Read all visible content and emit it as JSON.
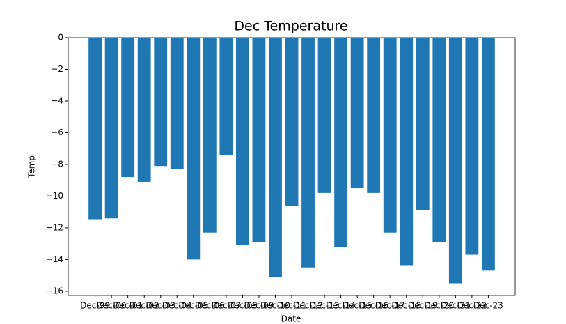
{
  "chart_data": {
    "type": "bar",
    "title": "Dec Temperature",
    "x_label": "Date",
    "y_label": "Temp",
    "categories": [
      "Dec-99",
      "Dec-00",
      "Dec-01",
      "Dec-02",
      "Dec-03",
      "Dec-04",
      "Dec-05",
      "Dec-06",
      "Dec-07",
      "Dec-08",
      "Dec-09",
      "Dec-10",
      "Dec-11",
      "Dec-12",
      "Dec-13",
      "Dec-14",
      "Dec-15",
      "Dec-16",
      "Dec-17",
      "Dec-18",
      "Dec-19",
      "Dec-20",
      "Dec-21",
      "Dec-22",
      "Dec-23"
    ],
    "values": [
      -11.5,
      -11.4,
      -8.8,
      -9.1,
      -8.1,
      -8.3,
      -14.0,
      -12.3,
      -7.4,
      -13.1,
      -12.9,
      -15.1,
      -10.6,
      -14.5,
      -9.8,
      -13.2,
      -9.5,
      -9.8,
      -12.3,
      -14.4,
      -10.9,
      -12.9,
      -15.5,
      -13.7,
      -14.7
    ],
    "color": "#1f77b4",
    "ylim": [
      -16.27,
      0
    ],
    "yticks": [
      0,
      {
        "value": -2,
        "label": "−2"
      },
      {
        "value": -4,
        "label": "−4"
      },
      {
        "value": -6,
        "label": "−6"
      },
      {
        "value": -8,
        "label": "−8"
      },
      {
        "value": -10,
        "label": "−10"
      },
      {
        "value": -12,
        "label": "−12"
      },
      {
        "value": -14,
        "label": "−14"
      },
      {
        "value": -16,
        "label": "−16"
      }
    ],
    "grid": false
  }
}
